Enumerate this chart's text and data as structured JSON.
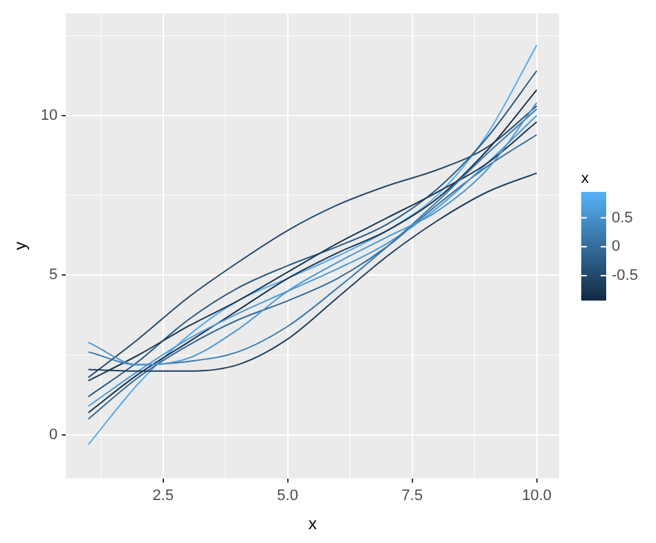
{
  "chart_data": {
    "type": "line",
    "xlabel": "x",
    "ylabel": "y",
    "clabel": "x",
    "x": [
      1,
      2,
      3,
      4,
      5,
      6,
      7,
      8,
      9,
      10
    ],
    "series": [
      {
        "values": [
          2.9,
          2.2,
          2.4,
          3.3,
          4.5,
          5.4,
          6.2,
          7.0,
          8.3,
          10.4
        ],
        "color": "#4a96d2"
      },
      {
        "values": [
          2.05,
          2.0,
          2.0,
          2.2,
          3.0,
          4.3,
          5.6,
          6.7,
          7.6,
          8.2
        ],
        "color": "#1d3d5c"
      },
      {
        "values": [
          2.6,
          2.2,
          2.3,
          2.6,
          3.4,
          4.6,
          5.9,
          7.3,
          8.8,
          10.2
        ],
        "color": "#3a7ab0"
      },
      {
        "values": [
          1.7,
          2.5,
          3.4,
          4.2,
          5.1,
          6.0,
          6.8,
          7.6,
          8.5,
          9.8
        ],
        "color": "#1a364f"
      },
      {
        "values": [
          1.2,
          2.3,
          3.6,
          4.6,
          5.3,
          5.9,
          6.6,
          7.7,
          9.3,
          11.4
        ],
        "color": "#2a5a84"
      },
      {
        "values": [
          0.9,
          2.0,
          3.0,
          3.8,
          4.5,
          5.2,
          6.0,
          7.1,
          8.5,
          10.0
        ],
        "color": "#4c9ad8"
      },
      {
        "values": [
          0.7,
          1.9,
          2.9,
          3.9,
          4.9,
          5.7,
          6.4,
          7.4,
          8.9,
          10.8
        ],
        "color": "#173149"
      },
      {
        "values": [
          0.5,
          1.8,
          2.8,
          3.6,
          4.2,
          4.9,
          5.9,
          7.2,
          8.4,
          9.4
        ],
        "color": "#306a9a"
      },
      {
        "values": [
          -0.3,
          1.6,
          3.1,
          4.2,
          4.9,
          5.6,
          6.4,
          7.5,
          9.4,
          12.2
        ],
        "color": "#52aaee"
      },
      {
        "values": [
          1.8,
          3.0,
          4.3,
          5.4,
          6.4,
          7.2,
          7.8,
          8.3,
          9.0,
          10.3
        ],
        "color": "#24486b"
      }
    ],
    "colors": [
      "#132b43",
      "#56b1f7"
    ],
    "clim": [
      -0.92,
      0.95
    ],
    "cticks": [
      -0.5,
      0,
      0.5
    ],
    "xlim": [
      0.55,
      10.45
    ],
    "xticks": [
      {
        "value": 2.5,
        "label": "2.5"
      },
      {
        "value": 5,
        "label": "5.0"
      },
      {
        "value": 7.5,
        "label": "7.5"
      },
      {
        "value": 10,
        "label": "10.0"
      }
    ],
    "ylim": [
      -1.36,
      13.2
    ],
    "yticks": [
      0,
      5,
      10
    ],
    "grid": true,
    "legend": false
  }
}
